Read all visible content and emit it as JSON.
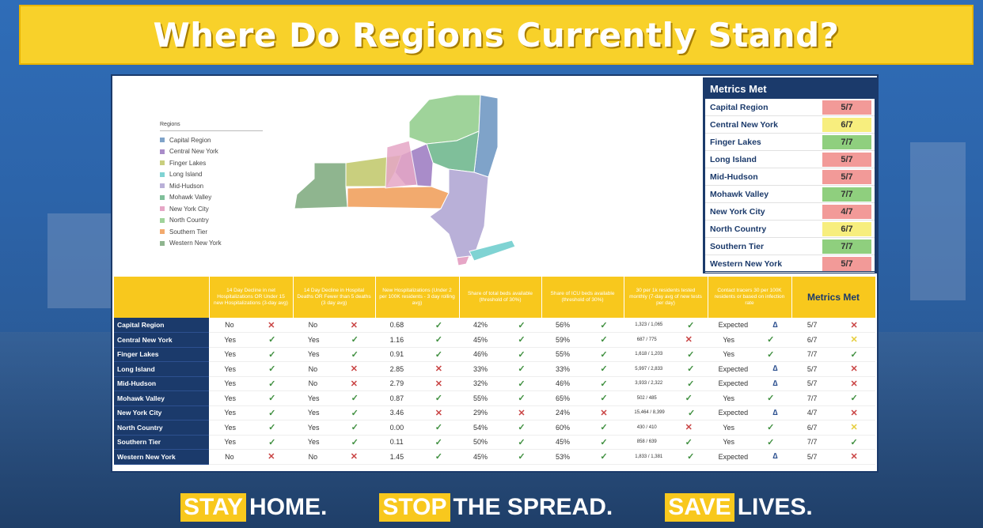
{
  "title": "Where Do Regions Currently Stand?",
  "colors": {
    "banner": "#f8d12a",
    "navy": "#1b3a6b",
    "pass": "#3f8f3f",
    "fail": "#c94343",
    "red_cell": "#f29a98",
    "yellow_cell": "#f7ee7e",
    "green_cell": "#8fcf7e"
  },
  "legend": {
    "title": "Regions",
    "items": [
      {
        "label": "Capital Region",
        "color": "#7fa3c9"
      },
      {
        "label": "Central New York",
        "color": "#a98cc9"
      },
      {
        "label": "Finger Lakes",
        "color": "#c9cf7e"
      },
      {
        "label": "Long Island",
        "color": "#7fd3d3"
      },
      {
        "label": "Mid-Hudson",
        "color": "#b9b0d8"
      },
      {
        "label": "Mohawk Valley",
        "color": "#7fbf9a"
      },
      {
        "label": "New York City",
        "color": "#e6a6c6"
      },
      {
        "label": "North Country",
        "color": "#9fd39a"
      },
      {
        "label": "Southern Tier",
        "color": "#f2aa6e"
      },
      {
        "label": "Western New York",
        "color": "#8fb58f"
      }
    ]
  },
  "metrics_met": {
    "header": "Metrics Met",
    "rows": [
      {
        "name": "Capital Region",
        "value": "5/7",
        "status": "red"
      },
      {
        "name": "Central New York",
        "value": "6/7",
        "status": "yellow"
      },
      {
        "name": "Finger Lakes",
        "value": "7/7",
        "status": "green"
      },
      {
        "name": "Long Island",
        "value": "5/7",
        "status": "red"
      },
      {
        "name": "Mid-Hudson",
        "value": "5/7",
        "status": "red"
      },
      {
        "name": "Mohawk Valley",
        "value": "7/7",
        "status": "green"
      },
      {
        "name": "New York City",
        "value": "4/7",
        "status": "red"
      },
      {
        "name": "North Country",
        "value": "6/7",
        "status": "yellow"
      },
      {
        "name": "Southern Tier",
        "value": "7/7",
        "status": "green"
      },
      {
        "name": "Western New York",
        "value": "5/7",
        "status": "red"
      }
    ]
  },
  "table": {
    "headers": [
      "",
      "14 Day Decline in net Hospitalizations OR Under 15 new Hospitalizations (3-day avg)",
      "14 Day Decline in Hospital Deaths OR Fewer than 5 deaths (3 day avg)",
      "New Hospitalizations (Under 2 per 100K residents - 3 day rolling avg)",
      "Share of total beds available (threshold of 30%)",
      "Share of ICU beds available (threshold of 30%)",
      "30 per 1k residents tested monthly (7-day avg of new tests per day)",
      "Contact tracers 30 per 100K residents or based on infection rate",
      "Metrics Met"
    ],
    "rows": [
      {
        "region": "Capital Region",
        "c1": [
          "No",
          "x"
        ],
        "c2": [
          "No",
          "x"
        ],
        "c3": [
          "0.68",
          "check"
        ],
        "c4": [
          "42%",
          "check"
        ],
        "c5": [
          "56%",
          "check"
        ],
        "c6": [
          "1,323 / 1,065",
          "check"
        ],
        "c7": [
          "Expected",
          "tri"
        ],
        "mm": [
          "5/7",
          "x"
        ]
      },
      {
        "region": "Central New York",
        "c1": [
          "Yes",
          "check"
        ],
        "c2": [
          "Yes",
          "check"
        ],
        "c3": [
          "1.16",
          "check"
        ],
        "c4": [
          "45%",
          "check"
        ],
        "c5": [
          "59%",
          "check"
        ],
        "c6": [
          "687 / 775",
          "x"
        ],
        "c7": [
          "Yes",
          "check"
        ],
        "mm": [
          "6/7",
          "amber"
        ]
      },
      {
        "region": "Finger Lakes",
        "c1": [
          "Yes",
          "check"
        ],
        "c2": [
          "Yes",
          "check"
        ],
        "c3": [
          "0.91",
          "check"
        ],
        "c4": [
          "46%",
          "check"
        ],
        "c5": [
          "55%",
          "check"
        ],
        "c6": [
          "1,618 / 1,203",
          "check"
        ],
        "c7": [
          "Yes",
          "check"
        ],
        "mm": [
          "7/7",
          "check"
        ]
      },
      {
        "region": "Long Island",
        "c1": [
          "Yes",
          "check"
        ],
        "c2": [
          "No",
          "x"
        ],
        "c3": [
          "2.85",
          "x"
        ],
        "c4": [
          "33%",
          "check"
        ],
        "c5": [
          "33%",
          "check"
        ],
        "c6": [
          "5,997 / 2,833",
          "check"
        ],
        "c7": [
          "Expected",
          "tri"
        ],
        "mm": [
          "5/7",
          "x"
        ]
      },
      {
        "region": "Mid-Hudson",
        "c1": [
          "Yes",
          "check"
        ],
        "c2": [
          "No",
          "x"
        ],
        "c3": [
          "2.79",
          "x"
        ],
        "c4": [
          "32%",
          "check"
        ],
        "c5": [
          "46%",
          "check"
        ],
        "c6": [
          "3,933 / 2,322",
          "check"
        ],
        "c7": [
          "Expected",
          "tri"
        ],
        "mm": [
          "5/7",
          "x"
        ]
      },
      {
        "region": "Mohawk Valley",
        "c1": [
          "Yes",
          "check"
        ],
        "c2": [
          "Yes",
          "check"
        ],
        "c3": [
          "0.87",
          "check"
        ],
        "c4": [
          "55%",
          "check"
        ],
        "c5": [
          "65%",
          "check"
        ],
        "c6": [
          "502 / 485",
          "check"
        ],
        "c7": [
          "Yes",
          "check"
        ],
        "mm": [
          "7/7",
          "check"
        ]
      },
      {
        "region": "New York City",
        "c1": [
          "Yes",
          "check"
        ],
        "c2": [
          "Yes",
          "check"
        ],
        "c3": [
          "3.46",
          "x"
        ],
        "c4": [
          "29%",
          "x"
        ],
        "c5": [
          "24%",
          "x"
        ],
        "c6": [
          "15,464 / 8,399",
          "check"
        ],
        "c7": [
          "Expected",
          "tri"
        ],
        "mm": [
          "4/7",
          "x"
        ]
      },
      {
        "region": "North Country",
        "c1": [
          "Yes",
          "check"
        ],
        "c2": [
          "Yes",
          "check"
        ],
        "c3": [
          "0.00",
          "check"
        ],
        "c4": [
          "54%",
          "check"
        ],
        "c5": [
          "60%",
          "check"
        ],
        "c6": [
          "430 / 410",
          "x"
        ],
        "c7": [
          "Yes",
          "check"
        ],
        "mm": [
          "6/7",
          "amber"
        ]
      },
      {
        "region": "Southern Tier",
        "c1": [
          "Yes",
          "check"
        ],
        "c2": [
          "Yes",
          "check"
        ],
        "c3": [
          "0.11",
          "check"
        ],
        "c4": [
          "50%",
          "check"
        ],
        "c5": [
          "45%",
          "check"
        ],
        "c6": [
          "858 / 639",
          "check"
        ],
        "c7": [
          "Yes",
          "check"
        ],
        "mm": [
          "7/7",
          "check"
        ]
      },
      {
        "region": "Western New York",
        "c1": [
          "No",
          "x"
        ],
        "c2": [
          "No",
          "x"
        ],
        "c3": [
          "1.45",
          "check"
        ],
        "c4": [
          "45%",
          "check"
        ],
        "c5": [
          "53%",
          "check"
        ],
        "c6": [
          "1,833 / 1,381",
          "check"
        ],
        "c7": [
          "Expected",
          "tri"
        ],
        "mm": [
          "5/7",
          "x"
        ]
      }
    ]
  },
  "footer": [
    {
      "highlight": "STAY",
      "rest": "HOME."
    },
    {
      "highlight": "STOP",
      "rest": "THE SPREAD."
    },
    {
      "highlight": "SAVE",
      "rest": "LIVES."
    }
  ]
}
